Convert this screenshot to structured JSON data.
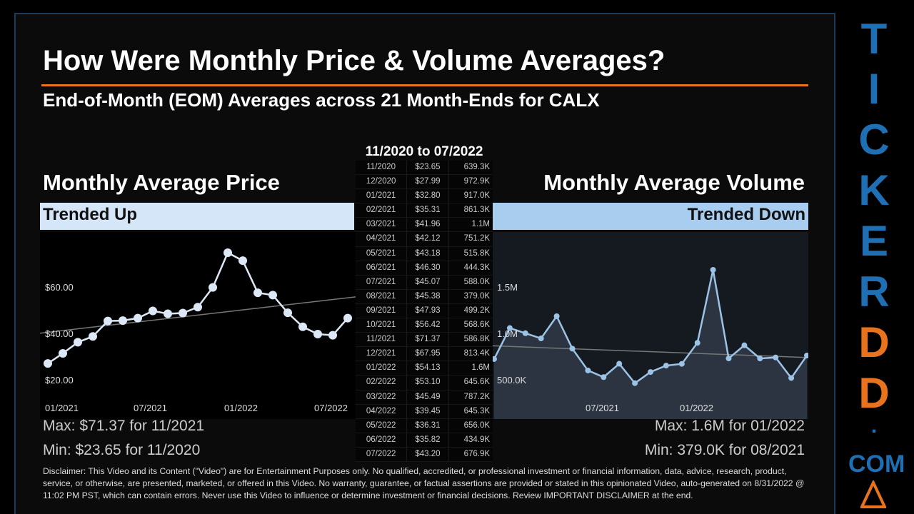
{
  "title": "How Were Monthly Price & Volume Averages?",
  "subtitle": "End-of-Month (EOM) Averages across 21 Month-Ends for CALX",
  "range_label": "11/2020 to 07/2022",
  "price_panel": {
    "title": "Monthly Average Price",
    "trend": "Trended Up",
    "max": "Max: $71.37 for 11/2021",
    "min": "Min: $23.65 for 11/2020"
  },
  "volume_panel": {
    "title": "Monthly Average Volume",
    "trend": "Trended Down",
    "max": "Max: 1.6M for 01/2022",
    "min": "Min: 379.0K for 08/2021"
  },
  "table": [
    [
      "11/2020",
      "$23.65",
      "639.3K"
    ],
    [
      "12/2020",
      "$27.99",
      "972.9K"
    ],
    [
      "01/2021",
      "$32.80",
      "917.0K"
    ],
    [
      "02/2021",
      "$35.31",
      "861.3K"
    ],
    [
      "03/2021",
      "$41.96",
      "1.1M"
    ],
    [
      "04/2021",
      "$42.12",
      "751.2K"
    ],
    [
      "05/2021",
      "$43.18",
      "515.8K"
    ],
    [
      "06/2021",
      "$46.30",
      "444.3K"
    ],
    [
      "07/2021",
      "$45.07",
      "588.0K"
    ],
    [
      "08/2021",
      "$45.38",
      "379.0K"
    ],
    [
      "09/2021",
      "$47.93",
      "499.2K"
    ],
    [
      "10/2021",
      "$56.42",
      "568.6K"
    ],
    [
      "11/2021",
      "$71.37",
      "586.8K"
    ],
    [
      "12/2021",
      "$67.95",
      "813.4K"
    ],
    [
      "01/2022",
      "$54.13",
      "1.6M"
    ],
    [
      "02/2022",
      "$53.10",
      "645.6K"
    ],
    [
      "03/2022",
      "$45.49",
      "787.2K"
    ],
    [
      "04/2022",
      "$39.45",
      "645.3K"
    ],
    [
      "05/2022",
      "$36.31",
      "656.0K"
    ],
    [
      "06/2022",
      "$35.82",
      "434.9K"
    ],
    [
      "07/2022",
      "$43.20",
      "676.9K"
    ]
  ],
  "chart_data": [
    {
      "type": "line",
      "categories": [
        "11/2020",
        "12/2020",
        "01/2021",
        "02/2021",
        "03/2021",
        "04/2021",
        "05/2021",
        "06/2021",
        "07/2021",
        "08/2021",
        "09/2021",
        "10/2021",
        "11/2021",
        "12/2021",
        "01/2022",
        "02/2022",
        "03/2022",
        "04/2022",
        "05/2022",
        "06/2022",
        "07/2022"
      ],
      "values": [
        23.65,
        27.99,
        32.8,
        35.31,
        41.96,
        42.12,
        43.18,
        46.3,
        45.07,
        45.38,
        47.93,
        56.42,
        71.37,
        67.95,
        54.13,
        53.1,
        45.49,
        39.45,
        36.31,
        35.82,
        43.2
      ],
      "yticks": [
        "$20.00",
        "$40.00",
        "$60.00"
      ],
      "xticks": [
        "01/2021",
        "07/2021",
        "01/2022",
        "07/2022"
      ],
      "ylim": [
        20,
        75
      ],
      "trendline": true,
      "color": "#dce8f5"
    },
    {
      "type": "area",
      "categories": [
        "11/2020",
        "12/2020",
        "01/2021",
        "02/2021",
        "03/2021",
        "04/2021",
        "05/2021",
        "06/2021",
        "07/2021",
        "08/2021",
        "09/2021",
        "10/2021",
        "11/2021",
        "12/2021",
        "01/2022",
        "02/2022",
        "03/2022",
        "04/2022",
        "05/2022",
        "06/2022",
        "07/2022"
      ],
      "values": [
        639.3,
        972.9,
        917.0,
        861.3,
        1100,
        751.2,
        515.8,
        444.3,
        588.0,
        379.0,
        499.2,
        568.6,
        586.8,
        813.4,
        1600,
        645.6,
        787.2,
        645.3,
        656.0,
        434.9,
        676.9
      ],
      "unit": "K",
      "yticks": [
        "500.0K",
        "1.0M",
        "1.5M"
      ],
      "xticks": [
        "07/2021",
        "01/2022"
      ],
      "ylim": [
        300,
        1700
      ],
      "trendline": true,
      "color": "#9cc3e6"
    }
  ],
  "brand": {
    "letters": [
      "T",
      "I",
      "C",
      "K",
      "E",
      "R",
      "D",
      "D",
      "."
    ],
    "suffix": "COM",
    "colors": {
      "blue": "#1f6fb5",
      "orange": "#e8731c"
    }
  },
  "disclaimer": "Disclaimer: This Video and its Content (\"Video\") are for Entertainment Purposes only. No qualified, accredited, or professional investment or financial information, data, advice, research, product, service, or otherwise, are presented, marketed, or offered in this Video. No warranty, guarantee, or factual assertions are provided or stated in this opinionated Video, auto-generated on 8/31/2022 @ 11:02 PM PST, which can contain errors. Never use this Video to influence or determine investment or financial decisions. Review IMPORTANT DISCLAIMER at the end."
}
